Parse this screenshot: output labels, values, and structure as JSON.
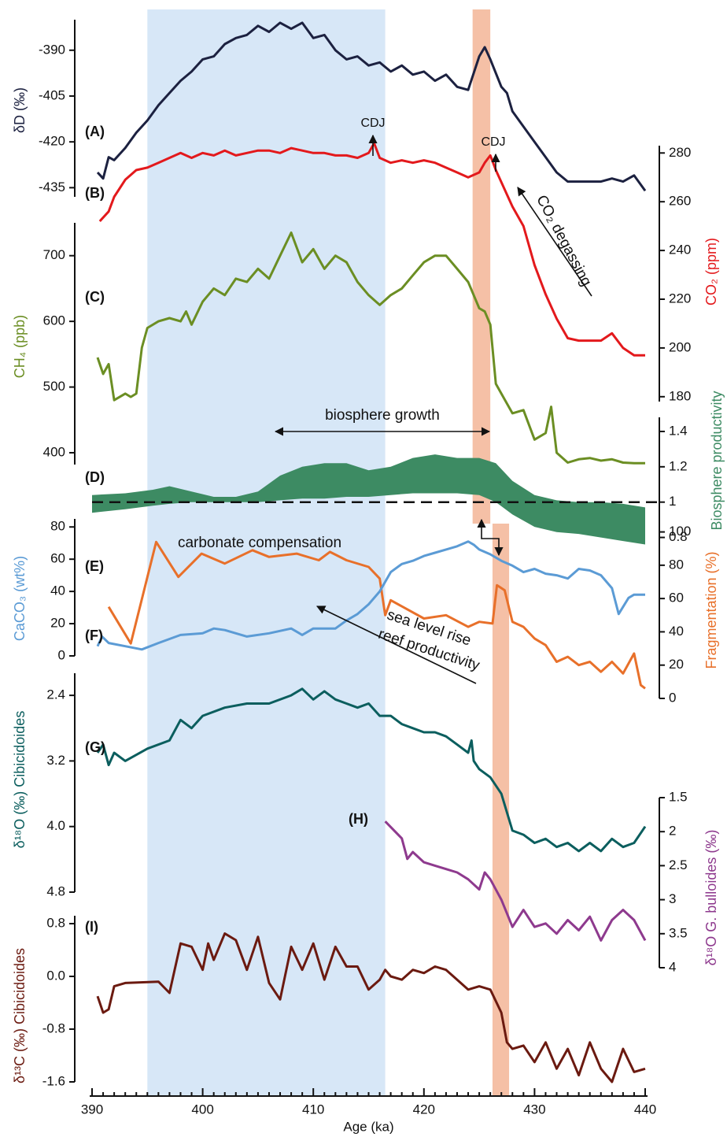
{
  "chart_data": {
    "type": "stacked-panels",
    "xlabel": "Age (ka)",
    "xlim": [
      390,
      440
    ],
    "xticks": [
      390,
      400,
      410,
      420,
      430,
      440
    ],
    "shading": [
      {
        "x": [
          395,
          416.5
        ],
        "color": "#d3e4f6"
      },
      {
        "x": [
          424.4,
          426.0
        ],
        "color": "#f4b99c"
      },
      {
        "x": [
          426.2,
          427.7
        ],
        "color": "#f4b99c"
      }
    ],
    "annotations": [
      "CDJ",
      "CDJ",
      "CO₂ degassing",
      "biosphere growth",
      "carbonate compensation",
      "sea level rise",
      "reef productivity"
    ],
    "panels": [
      {
        "type": "line",
        "label": "(A)",
        "ylabel": "δD (‰)",
        "side": "left",
        "inverted": false,
        "color": "#1c2140",
        "ylim": [
          -438,
          -380
        ],
        "yticks": [
          -390,
          -405,
          -420,
          -435
        ],
        "x": [
          390.5,
          391,
          391.5,
          392,
          393,
          394,
          395,
          396,
          397,
          398,
          399,
          400,
          401,
          402,
          403,
          404,
          405,
          406,
          407,
          408,
          409,
          410,
          411,
          412,
          413,
          414,
          415,
          416,
          417,
          418,
          419,
          420,
          421,
          422,
          423,
          424,
          425,
          425.5,
          426,
          427,
          427.5,
          428,
          429,
          430,
          431,
          432,
          433,
          434,
          435,
          436,
          437,
          438,
          439,
          440
        ],
        "values": [
          -430,
          -432,
          -425,
          -426,
          -422,
          -417,
          -413,
          -408,
          -404,
          -400,
          -397,
          -393,
          -392,
          -388,
          -386,
          -385,
          -382,
          -384,
          -381,
          -383,
          -381,
          -386,
          -385,
          -390,
          -393,
          -392,
          -395,
          -394,
          -397,
          -395,
          -398,
          -397,
          -400,
          -398,
          -402,
          -403,
          -392,
          -389,
          -393,
          -402,
          -404,
          -410,
          -415,
          -420,
          -425,
          -430,
          -433,
          -433,
          -433,
          -433,
          -432,
          -433,
          -431,
          -436
        ]
      },
      {
        "type": "line",
        "label": "(B)",
        "ylabel": "CO₂ (ppm)",
        "side": "right",
        "inverted": false,
        "color": "#e3191c",
        "ylim": [
          178,
          283
        ],
        "yticks": [
          280,
          260,
          240,
          220,
          200,
          180
        ],
        "x": [
          390.7,
          391.5,
          392,
          393,
          394,
          395,
          396,
          397,
          398,
          399,
          400,
          401,
          402,
          403,
          404,
          405,
          406,
          407,
          408,
          409,
          410,
          411,
          412,
          413,
          414,
          415,
          415.5,
          416,
          417,
          418,
          419,
          420,
          421,
          422,
          423,
          424,
          425,
          425.5,
          426,
          426.5,
          427,
          428,
          429,
          430,
          431,
          432,
          433,
          434,
          435,
          436,
          437,
          438,
          439,
          440
        ],
        "values": [
          252,
          256,
          262,
          269,
          273,
          274,
          276,
          278,
          280,
          278,
          280,
          279,
          281,
          279,
          280,
          281,
          281,
          280,
          282,
          281,
          280,
          280,
          279,
          279,
          278,
          280,
          284,
          278,
          276,
          277,
          276,
          277,
          276,
          274,
          272,
          270,
          272,
          276,
          279,
          273,
          268,
          258,
          250,
          234,
          222,
          212,
          204,
          203,
          203,
          203,
          206,
          200,
          197,
          197
        ]
      },
      {
        "type": "line",
        "label": "(C)",
        "ylabel": "CH₄ (ppb)",
        "side": "left",
        "inverted": false,
        "color": "#6b8e23",
        "ylim": [
          382,
          750
        ],
        "yticks": [
          700,
          600,
          500,
          400
        ],
        "x": [
          390.5,
          391,
          391.5,
          392,
          393,
          393.5,
          394,
          394.5,
          395,
          396,
          397,
          398,
          398.5,
          399,
          400,
          401,
          402,
          403,
          404,
          405,
          406,
          407,
          408,
          409,
          410,
          411,
          412,
          413,
          414,
          415,
          416,
          417,
          418,
          419,
          420,
          421,
          422,
          423,
          424,
          425,
          425.5,
          426,
          426.5,
          427,
          428,
          429,
          430,
          431,
          431.5,
          432,
          433,
          434,
          435,
          436,
          437,
          438,
          439,
          440
        ],
        "values": [
          545,
          520,
          535,
          480,
          490,
          485,
          490,
          560,
          590,
          600,
          605,
          600,
          615,
          595,
          630,
          650,
          640,
          665,
          660,
          680,
          665,
          700,
          735,
          690,
          710,
          680,
          700,
          690,
          660,
          640,
          625,
          640,
          650,
          670,
          690,
          700,
          700,
          680,
          660,
          620,
          615,
          595,
          505,
          490,
          460,
          465,
          420,
          430,
          470,
          400,
          385,
          390,
          392,
          388,
          390,
          385,
          384,
          384
        ]
      },
      {
        "type": "band",
        "label": "(D)",
        "ylabel": "Biosphere productivity",
        "side": "right",
        "inverted": false,
        "color": "#3d8b63",
        "ylim": [
          0.7,
          1.48
        ],
        "yticks": [
          1.4,
          1.2,
          1,
          0.8
        ],
        "reference_line": 1,
        "x": [
          390,
          393,
          395.5,
          397,
          399,
          401,
          403,
          405,
          407,
          409,
          411,
          413,
          415,
          417,
          419,
          421,
          423,
          425,
          426.5,
          428,
          430,
          432,
          434,
          436,
          438,
          440
        ],
        "upper": [
          1.04,
          1.05,
          1.07,
          1.09,
          1.06,
          1.03,
          1.03,
          1.06,
          1.15,
          1.2,
          1.22,
          1.22,
          1.18,
          1.2,
          1.25,
          1.27,
          1.25,
          1.25,
          1.22,
          1.12,
          1.04,
          1.01,
          1.0,
          1.0,
          0.99,
          0.97
        ],
        "lower": [
          0.94,
          0.96,
          0.98,
          0.99,
          1.0,
          1.0,
          1.0,
          1.0,
          1.01,
          1.02,
          1.02,
          1.03,
          1.03,
          1.04,
          1.05,
          1.05,
          1.05,
          1.04,
          1.0,
          0.93,
          0.86,
          0.83,
          0.82,
          0.8,
          0.78,
          0.76
        ]
      },
      {
        "type": "line",
        "label": "(E)",
        "ylabel": "Fragmentation (%)",
        "side": "right",
        "inverted": false,
        "color": "#e8702a",
        "ylim": [
          0,
          105
        ],
        "yticks": [
          100,
          80,
          60,
          40,
          20,
          0
        ],
        "x": [
          391.5,
          393.5,
          395.8,
          397.8,
          399.9,
          402,
          404.5,
          406,
          408.5,
          410.5,
          411.5,
          413,
          415,
          416,
          416.5,
          417,
          420,
          422,
          424,
          425,
          426.2,
          426.6,
          427.3,
          428,
          429,
          430,
          431,
          432,
          433,
          434,
          435,
          436,
          437,
          438,
          439,
          439.6,
          440
        ],
        "values": [
          55,
          33,
          94,
          73,
          87,
          81,
          89,
          85,
          87,
          83,
          88,
          83,
          79,
          72,
          50,
          59,
          48,
          50,
          43,
          46,
          45,
          68,
          65,
          46,
          43,
          36,
          32,
          22,
          25,
          20,
          22,
          16,
          22,
          15,
          27,
          8,
          6
        ]
      },
      {
        "type": "line",
        "label": "(F)",
        "ylabel": "CaCO₃ (wt%)",
        "side": "left",
        "inverted": false,
        "color": "#5b9bd5",
        "ylim": [
          0,
          85
        ],
        "yticks": [
          80,
          60,
          40,
          20,
          0
        ],
        "x": [
          390.5,
          390.9,
          391.5,
          393,
          394.5,
          396,
          398,
          400,
          401,
          402,
          404,
          406,
          408,
          409,
          410,
          412,
          413,
          414,
          415,
          416,
          417,
          418,
          419,
          420,
          421,
          422,
          423,
          424,
          424.5,
          425,
          426,
          427,
          428,
          429,
          430,
          431,
          432,
          433,
          434,
          435,
          436,
          437,
          437.6,
          438.5,
          439,
          440
        ],
        "values": [
          6,
          12,
          8,
          6,
          4,
          8,
          13,
          14,
          17,
          16,
          12,
          14,
          17,
          13,
          17,
          17,
          22,
          26,
          32,
          40,
          52,
          57,
          59,
          62,
          64,
          66,
          68,
          71,
          69,
          66,
          63,
          59,
          56,
          52,
          54,
          51,
          50,
          48,
          54,
          53,
          50,
          42,
          26,
          36,
          38,
          38
        ]
      },
      {
        "type": "line",
        "label": "(G)",
        "ylabel": "δ¹⁸O (‰) Cibicidoides",
        "side": "left",
        "inverted": true,
        "color": "#0b5e5e",
        "ylim": [
          2.13,
          4.8
        ],
        "yticks": [
          2.4,
          3.2,
          {
            "value": 4,
            "label": "4.0"
          },
          4.8
        ],
        "x": [
          390.5,
          391,
          391.5,
          392,
          393,
          395,
          397,
          398,
          399,
          400,
          402,
          404,
          406,
          408,
          409,
          410,
          411,
          412,
          413,
          414,
          415,
          416,
          417,
          418,
          419,
          420,
          421,
          422,
          423,
          424,
          424.3,
          424.5,
          425,
          426,
          427,
          428,
          429,
          430,
          431,
          432,
          433,
          434,
          435,
          436,
          437,
          438,
          439,
          440
        ],
        "values": [
          3.1,
          3.0,
          3.25,
          3.1,
          3.2,
          3.05,
          2.95,
          2.7,
          2.8,
          2.65,
          2.55,
          2.5,
          2.5,
          2.4,
          2.32,
          2.45,
          2.35,
          2.45,
          2.5,
          2.55,
          2.5,
          2.65,
          2.65,
          2.75,
          2.8,
          2.85,
          2.85,
          2.9,
          3.0,
          3.1,
          2.95,
          3.2,
          3.3,
          3.4,
          3.6,
          4.05,
          4.1,
          4.2,
          4.15,
          4.25,
          4.2,
          4.3,
          4.2,
          4.3,
          4.15,
          4.25,
          4.2,
          4.0
        ]
      },
      {
        "type": "line",
        "label": "(H)",
        "ylabel": "δ¹⁸O G. bulloides (‰)",
        "side": "right",
        "inverted": true,
        "color": "#8e3a8e",
        "ylim": [
          1.5,
          4
        ],
        "yticks": [
          1.5,
          2,
          2.5,
          3,
          3.5,
          4
        ],
        "x": [
          416.5,
          418,
          418.5,
          419,
          420,
          421,
          422,
          423,
          424,
          425,
          425.5,
          426,
          427,
          427.5,
          428,
          429,
          430,
          431,
          432,
          433,
          434,
          435,
          436,
          437,
          438,
          439,
          440
        ],
        "values": [
          1.85,
          2.1,
          2.4,
          2.3,
          2.45,
          2.5,
          2.55,
          2.6,
          2.7,
          2.85,
          2.6,
          2.7,
          3.0,
          3.2,
          3.4,
          3.15,
          3.4,
          3.35,
          3.5,
          3.3,
          3.45,
          3.25,
          3.6,
          3.3,
          3.15,
          3.3,
          3.6
        ]
      },
      {
        "type": "line",
        "label": "(I)",
        "ylabel": "δ¹³C (‰) Cibicidoides",
        "side": "left",
        "inverted": false,
        "color": "#6b1a10",
        "ylim": [
          -1.6,
          0.92
        ],
        "yticks": [
          0.8,
          {
            "value": 0,
            "label": "0.0"
          },
          -0.8,
          -1.6
        ],
        "x": [
          390.5,
          391,
          391.5,
          392,
          393,
          396,
          397,
          398,
          399,
          400,
          400.5,
          401,
          402,
          403,
          404,
          405,
          406,
          407,
          408,
          409,
          410,
          411,
          412,
          413,
          414,
          415,
          416,
          416.5,
          417,
          418,
          419,
          420,
          421,
          422,
          423,
          424,
          425,
          426,
          427,
          427.5,
          428,
          429,
          430,
          431,
          432,
          433,
          434,
          435,
          436,
          437,
          438,
          439,
          440
        ],
        "values": [
          -0.3,
          -0.55,
          -0.5,
          -0.15,
          -0.1,
          -0.08,
          -0.25,
          0.5,
          0.45,
          0.1,
          0.5,
          0.25,
          0.65,
          0.55,
          0.1,
          0.6,
          -0.1,
          -0.35,
          0.45,
          0.1,
          0.5,
          -0.05,
          0.45,
          0.15,
          0.15,
          -0.2,
          -0.05,
          0.1,
          0.0,
          -0.05,
          0.1,
          0.05,
          0.15,
          0.1,
          -0.05,
          -0.2,
          -0.15,
          -0.2,
          -0.55,
          -1.0,
          -1.1,
          -1.05,
          -1.3,
          -1.0,
          -1.4,
          -1.1,
          -1.5,
          -1.0,
          -1.4,
          -1.6,
          -1.1,
          -1.45,
          -1.4
        ]
      }
    ]
  }
}
